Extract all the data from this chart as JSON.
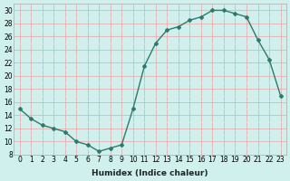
{
  "xlabel": "Humidex (Indice chaleur)",
  "x": [
    0,
    1,
    2,
    3,
    4,
    5,
    6,
    7,
    8,
    9,
    10,
    11,
    12,
    13,
    14,
    15,
    16,
    17,
    18,
    19,
    20,
    21,
    22,
    23
  ],
  "y": [
    15,
    13.5,
    12.5,
    12,
    11.5,
    10,
    9.5,
    8.5,
    9,
    9.5,
    15,
    21.5,
    25,
    27,
    27.5,
    28.5,
    29,
    30,
    30,
    29.5,
    29,
    25.5,
    22.5,
    17
  ],
  "line_color": "#2d7a6e",
  "bg_color": "#cff0ec",
  "ylim": [
    8,
    31
  ],
  "yticks": [
    8,
    10,
    12,
    14,
    16,
    18,
    20,
    22,
    24,
    26,
    28,
    30
  ],
  "xlim": [
    -0.5,
    23.5
  ],
  "marker": "D",
  "markersize": 2,
  "linewidth": 1.0,
  "major_grid_color": "#e8b0b0",
  "minor_grid_color": "#d8eeeb",
  "xlabel_fontsize": 6.5,
  "tick_fontsize": 5.5
}
